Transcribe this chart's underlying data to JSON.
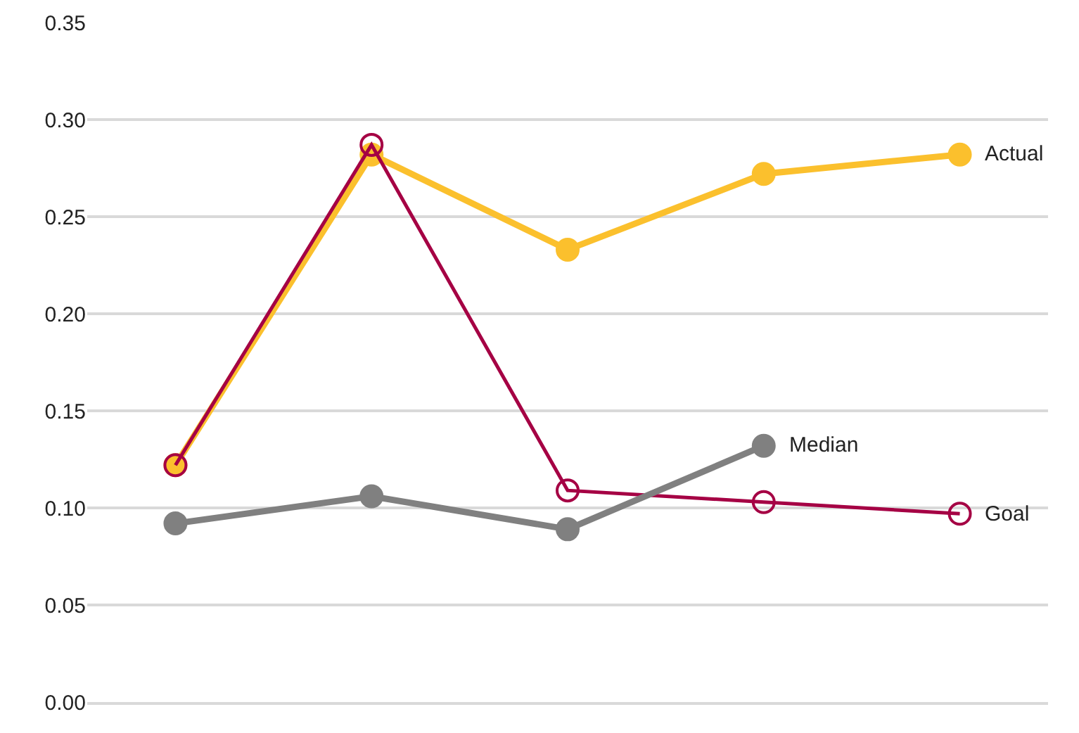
{
  "chart_data": {
    "type": "line",
    "categories": [
      null,
      null,
      null,
      null,
      null
    ],
    "series": [
      {
        "name": "Actual",
        "color": "#fbc02d",
        "values": [
          0.122,
          0.282,
          0.233,
          0.272,
          0.282
        ]
      },
      {
        "name": "Goal",
        "color": "#a50044",
        "values": [
          0.122,
          0.287,
          0.109,
          0.103,
          0.097
        ]
      },
      {
        "name": "Median",
        "color": "#808080",
        "values": [
          0.092,
          0.106,
          0.089,
          0.132,
          null
        ]
      }
    ],
    "ylim": [
      0,
      0.35
    ],
    "yticks": [
      {
        "value": 0,
        "label": "0.00"
      },
      {
        "value": 0.05,
        "label": "0.05"
      },
      {
        "value": 0.1,
        "label": "0.10"
      },
      {
        "value": 0.15,
        "label": "0.15"
      },
      {
        "value": 0.2,
        "label": "0.20"
      },
      {
        "value": 0.25,
        "label": "0.25"
      },
      {
        "value": 0.3,
        "label": "0.30"
      },
      {
        "value": 0.35,
        "label": "0.35"
      }
    ],
    "grid": "y",
    "legend": false,
    "marker": "circle",
    "line_style": "solid"
  }
}
